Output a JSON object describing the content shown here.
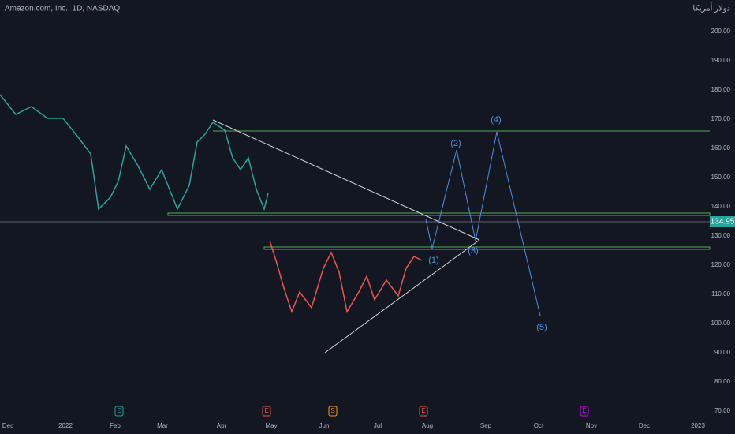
{
  "header": {
    "title": "Amazon.com, Inc., 1D, NASDAQ",
    "currency": "دولار أمريكا"
  },
  "price_axis": {
    "labels": [
      "200.00",
      "190.00",
      "180.00",
      "170.00",
      "160.00",
      "150.00",
      "140.00",
      "130.00",
      "120.00",
      "110.00",
      "100.00",
      "90.00",
      "80.00",
      "70.00"
    ],
    "current_price": "134.95"
  },
  "time_axis": {
    "labels": [
      "Dec",
      "2022",
      "Feb",
      "Mar",
      "Apr",
      "May",
      "Jun",
      "Jul",
      "Aug",
      "Sep",
      "Oct",
      "Nov",
      "Dec",
      "2023"
    ]
  },
  "waves": [
    "(1)",
    "(2)",
    "(3)",
    "(4)",
    "(5)"
  ],
  "events": [
    "E",
    "E",
    "S",
    "E",
    "E"
  ]
}
